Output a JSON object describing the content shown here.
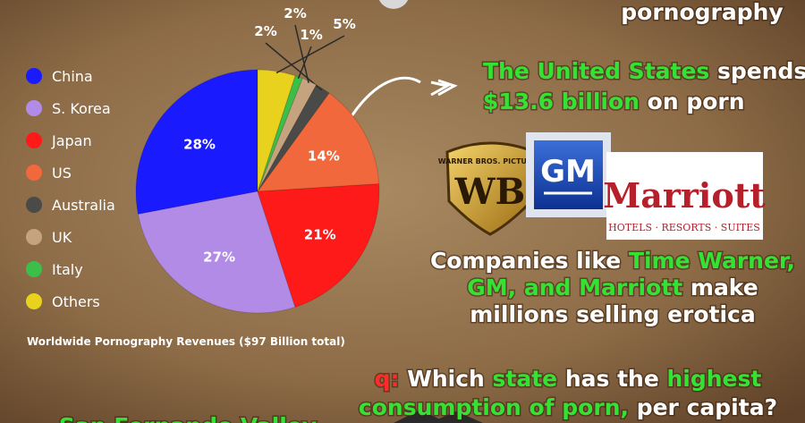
{
  "chart_data": {
    "type": "pie",
    "title": "Worldwide Pornography Revenues ($97 Billion total)",
    "categories": [
      "China",
      "S. Korea",
      "Japan",
      "US",
      "Australia",
      "UK",
      "Italy",
      "Others"
    ],
    "values": [
      28,
      27,
      21,
      14,
      2,
      2,
      1,
      5
    ],
    "value_labels": [
      "28%",
      "27%",
      "21%",
      "14%",
      "2%",
      "2%",
      "1%",
      "5%"
    ],
    "colors": [
      "#1a1aff",
      "#b18be6",
      "#ff1a1a",
      "#f0683c",
      "#4a4a48",
      "#c5a37f",
      "#3cbf4a",
      "#e8d21e"
    ],
    "direction": "counterclockwise",
    "legend": "left"
  },
  "heading": "pornography",
  "us_spend": [
    [
      "The United States",
      " spends"
    ],
    [
      "$13.6 billion",
      " on porn"
    ]
  ],
  "logos": {
    "gm": "GM",
    "marriott": "Marriott",
    "marriott_tagline": "HOTELS · RESORTS · SUITES",
    "warner": "WARNER BROS. PICTURES",
    "wb": "WB"
  },
  "companies": [
    [
      "Companies like ",
      "Time Warner,"
    ],
    [
      "GM, and Marriott",
      " make"
    ],
    [
      "millions selling erotica"
    ]
  ],
  "question": [
    [
      "q:",
      " Which ",
      "state",
      " has the ",
      "highest"
    ],
    [
      "consumption of porn,",
      " per capita?"
    ]
  ],
  "answer": "San Fernando Valley"
}
